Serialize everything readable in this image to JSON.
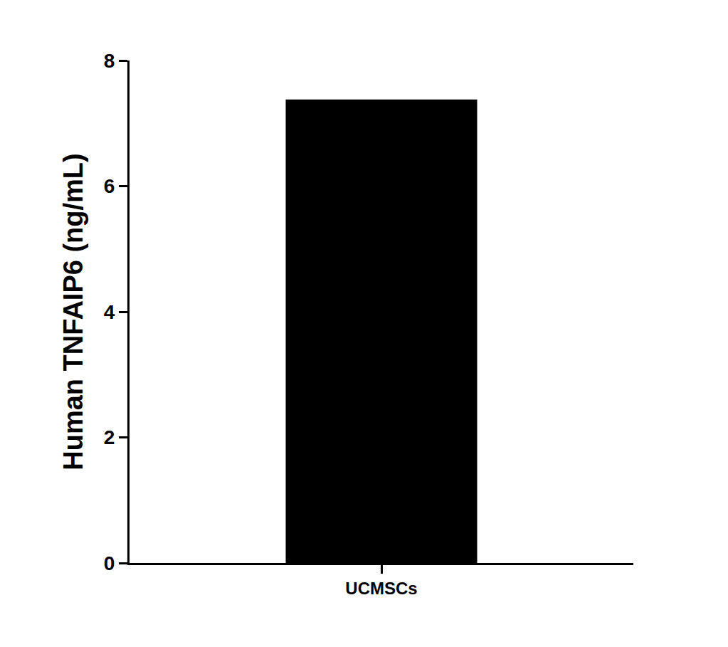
{
  "chart_data": {
    "type": "bar",
    "categories": [
      "UCMSCs"
    ],
    "values": [
      7.38
    ],
    "color": "#000000",
    "y_label": "Human TNFAIP6 (ng/mL)",
    "ylim": [
      0,
      8
    ],
    "yticks": [
      0,
      2,
      4,
      6,
      8
    ],
    "grid": false
  }
}
